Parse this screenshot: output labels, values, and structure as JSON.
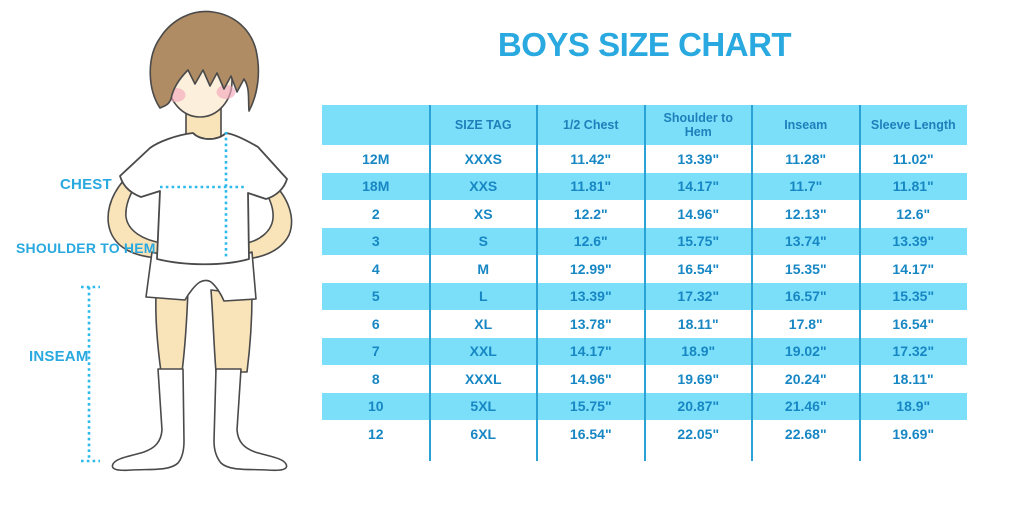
{
  "title": "BOYS SIZE CHART",
  "figure_labels": {
    "chest": "CHEST",
    "shoulder_to_hem": "SHOULDER TO HEM",
    "inseam": "INSEAM"
  },
  "colors": {
    "accent_blue": "#29A9DF",
    "table_text_blue": "#1787C4",
    "header_text_blue": "#1E80BB",
    "cell_light_blue": "#7BDFF9",
    "divider_blue": "#2BA2D6",
    "dotted_line_blue": "#2CB9EC",
    "hair_brown": "#B08C64",
    "skin": "#F9E3B9",
    "face": "#FCF0DC",
    "cheek_pink": "#F3A9BC",
    "outline": "#4A4A4A"
  },
  "chart_data": {
    "type": "table",
    "title": "BOYS SIZE CHART",
    "units": "inches",
    "columns": [
      "",
      "SIZE TAG",
      "1/2 Chest",
      "Shoulder to Hem",
      "Inseam",
      "Sleeve Length"
    ],
    "rows": [
      [
        "12M",
        "XXXS",
        "11.42\"",
        "13.39\"",
        "11.28\"",
        "11.02\""
      ],
      [
        "18M",
        "XXS",
        "11.81\"",
        "14.17\"",
        "11.7\"",
        "11.81\""
      ],
      [
        "2",
        "XS",
        "12.2\"",
        "14.96\"",
        "12.13\"",
        "12.6\""
      ],
      [
        "3",
        "S",
        "12.6\"",
        "15.75\"",
        "13.74\"",
        "13.39\""
      ],
      [
        "4",
        "M",
        "12.99\"",
        "16.54\"",
        "15.35\"",
        "14.17\""
      ],
      [
        "5",
        "L",
        "13.39\"",
        "17.32\"",
        "16.57\"",
        "15.35\""
      ],
      [
        "6",
        "XL",
        "13.78\"",
        "18.11\"",
        "17.8\"",
        "16.54\""
      ],
      [
        "7",
        "XXL",
        "14.17\"",
        "18.9\"",
        "19.02\"",
        "17.32\""
      ],
      [
        "8",
        "XXXL",
        "14.96\"",
        "19.69\"",
        "20.24\"",
        "18.11\""
      ],
      [
        "10",
        "5XL",
        "15.75\"",
        "20.87\"",
        "21.46\"",
        "18.9\""
      ],
      [
        "12",
        "6XL",
        "16.54\"",
        "22.05\"",
        "22.68\"",
        "19.69\""
      ]
    ],
    "row_shading": "alternating white / light-blue, first data row white",
    "legend_position": "none",
    "grid": "vertical dividers only"
  }
}
